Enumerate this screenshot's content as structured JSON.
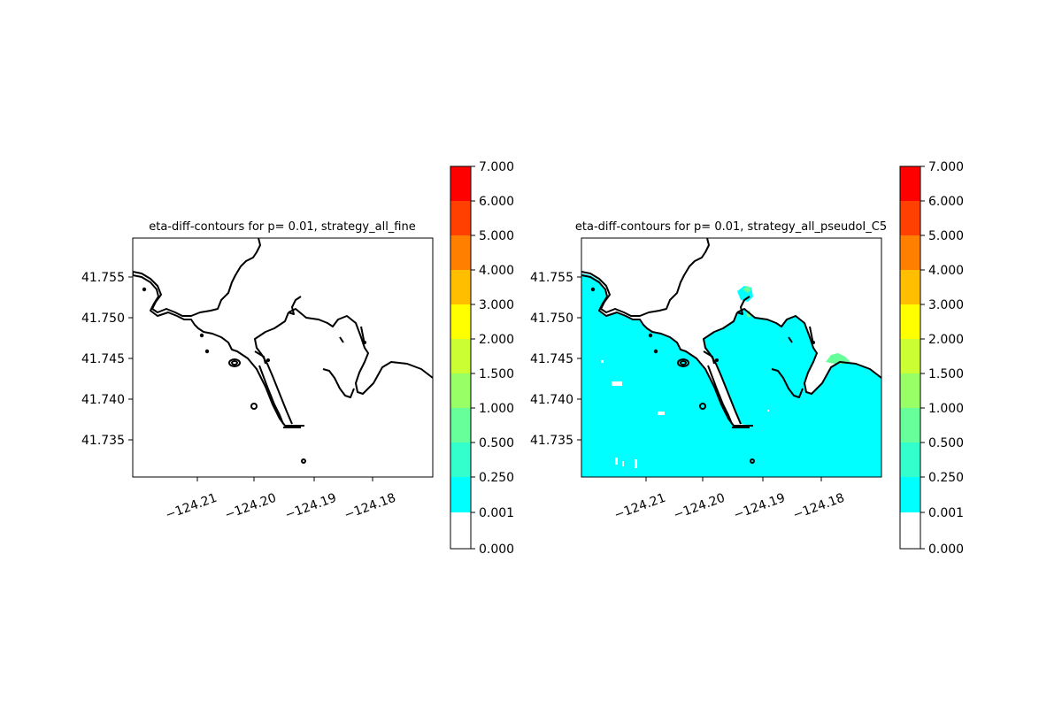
{
  "chart_data": [
    {
      "type": "contourf",
      "title": "eta-diff-contours for p= 0.01, strategy_all_fine",
      "x_ticks": [
        "−124.21",
        "−124.20",
        "−124.19",
        "−124.18"
      ],
      "x_tick_values": [
        -124.21,
        -124.2,
        -124.19,
        -124.18
      ],
      "y_ticks": [
        "41.755",
        "41.750",
        "41.745",
        "41.740",
        "41.735"
      ],
      "y_tick_values": [
        41.755,
        41.75,
        41.745,
        41.74,
        41.735
      ],
      "xlim": [
        -124.2195,
        -124.1695
      ],
      "ylim": [
        41.7302,
        41.7596
      ],
      "filled_level": null,
      "colorbar": {
        "levels": [
          "0.000",
          "0.001",
          "0.250",
          "0.500",
          "1.000",
          "1.500",
          "2.000",
          "3.000",
          "4.000",
          "5.000",
          "6.000",
          "7.000"
        ],
        "colors": [
          "#ffffff",
          "#00ffff",
          "#33ffcc",
          "#66ff99",
          "#99ff66",
          "#ccff33",
          "#ffff00",
          "#ffbf00",
          "#ff8000",
          "#ff4000",
          "#ff0000"
        ]
      }
    },
    {
      "type": "contourf",
      "title": "eta-diff-contours for p= 0.01, strategy_all_pseudoI_C5",
      "x_ticks": [
        "−124.21",
        "−124.20",
        "−124.19",
        "−124.18"
      ],
      "x_tick_values": [
        -124.21,
        -124.2,
        -124.19,
        -124.18
      ],
      "y_ticks": [
        "41.755",
        "41.750",
        "41.745",
        "41.740",
        "41.735"
      ],
      "y_tick_values": [
        41.755,
        41.75,
        41.745,
        41.74,
        41.735
      ],
      "xlim": [
        -124.2195,
        -124.1695
      ],
      "ylim": [
        41.7302,
        41.7596
      ],
      "filled_level": "0.001-0.250",
      "colorbar": {
        "levels": [
          "0.000",
          "0.001",
          "0.250",
          "0.500",
          "1.000",
          "1.500",
          "2.000",
          "3.000",
          "4.000",
          "5.000",
          "6.000",
          "7.000"
        ],
        "colors": [
          "#ffffff",
          "#00ffff",
          "#33ffcc",
          "#66ff99",
          "#99ff66",
          "#ccff33",
          "#ffff00",
          "#ffbf00",
          "#ff8000",
          "#ff4000",
          "#ff0000"
        ]
      }
    }
  ]
}
